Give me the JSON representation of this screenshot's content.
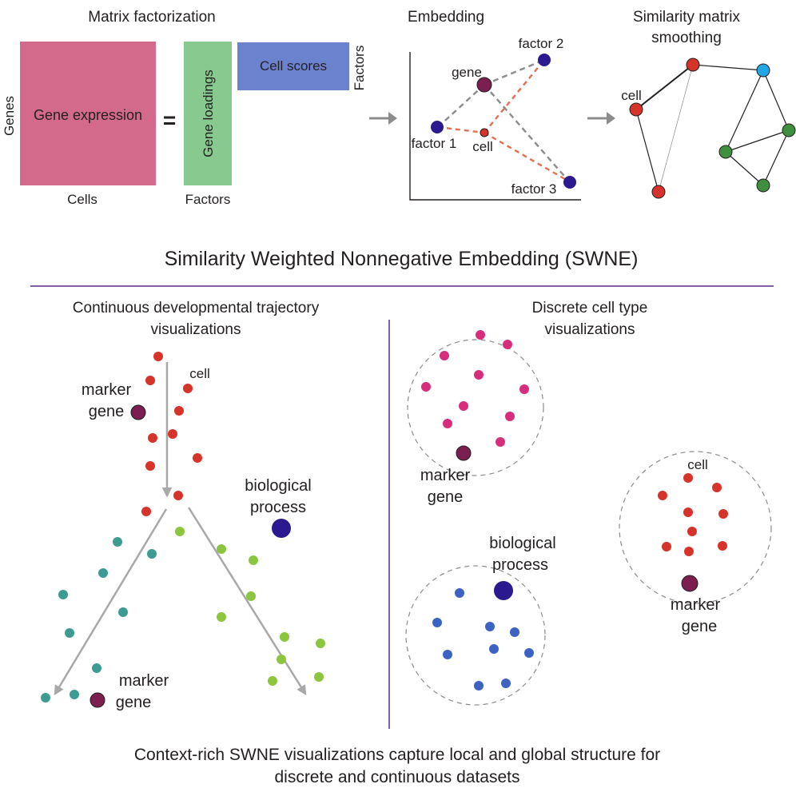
{
  "colors": {
    "text": "#231f20",
    "gene_expression_fill": "#d36a8c",
    "gene_loadings_fill": "#88c98f",
    "cell_scores_fill": "#6b82cf",
    "factor_dot": "#2b1a8f",
    "gene_dot": "#7a1f4f",
    "cell_dot": "#d6332a",
    "grey_dashed": "#8c8c8c",
    "orange_dashed": "#e07050",
    "arrow_grey": "#a8a8a8",
    "teal_dot": "#3e9b91",
    "lime_dot": "#8cc63e",
    "pink_dot": "#d62e7d",
    "blue_dot": "#3c63c4",
    "node_blue": "#23a6e6",
    "node_green": "#3e8f3e",
    "divider": "#5b2a86",
    "circle_outline": "#8c8c8c"
  },
  "matrix": {
    "title": "Matrix factorization",
    "genes_label": "Genes",
    "cells_label": "Cells",
    "gene_expression_label": "Gene expression",
    "equals": "=",
    "gene_loadings_label": "Gene loadings",
    "cell_scores_label": "Cell scores",
    "factors_label_bottom": "Factors",
    "factors_label_side": "Factors"
  },
  "embedding": {
    "title": "Embedding",
    "factor1": "factor 1",
    "factor2": "factor 2",
    "factor3": "factor 3",
    "gene": "gene",
    "cell": "cell"
  },
  "similarity": {
    "title_line1": "Similarity matrix",
    "title_line2": "smoothing",
    "cell": "cell"
  },
  "swne_title": "Similarity Weighted Nonnegative Embedding (SWNE)",
  "continuous": {
    "title_line1": "Continuous developmental trajectory",
    "title_line2": "visualizations",
    "cell": "cell",
    "marker_top_line1": "marker",
    "marker_top_line2": "gene",
    "bio_line1": "biological",
    "bio_line2": "process",
    "marker_bottom_line1": "marker",
    "marker_bottom_line2": "gene"
  },
  "discrete": {
    "title_line1": "Discrete cell type",
    "title_line2": "visualizations",
    "marker_pink_line1": "marker",
    "marker_pink_line2": "gene",
    "cell": "cell",
    "marker_red_line1": "marker",
    "marker_red_line2": "gene",
    "bio_line1": "biological",
    "bio_line2": "process"
  },
  "caption_line1": "Context-rich SWNE visualizations capture local and global structure for",
  "caption_line2": "discrete and continuous datasets"
}
